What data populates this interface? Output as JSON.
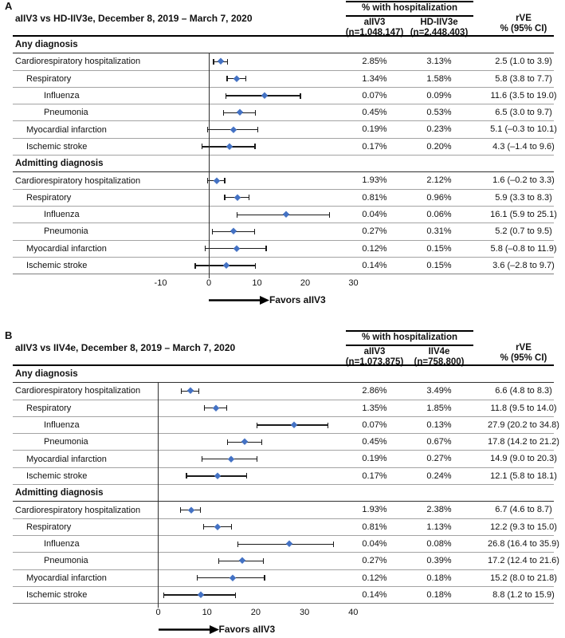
{
  "figure": {
    "hosp_header": "% with hospitalization",
    "rve_header_line1": "rVE",
    "rve_header_line2": "% (95% CI)",
    "favors_label": "Favors aIIV3"
  },
  "colors": {
    "diamond": "#4472c4",
    "error_bar": "#1a1a1a",
    "row_divider": "#a3a3a3",
    "section_divider": "#2f2f2f",
    "header_line": "#000000"
  },
  "chart_data": [
    {
      "type": "forest",
      "panel": "A",
      "title": "aIIV3 vs HD-IIV3e, December 8, 2019 – March 7, 2020",
      "col1": {
        "name": "aIIV3",
        "n": "(n=1,048,147)"
      },
      "col2": {
        "name": "HD-IIV3e",
        "n": "(n=2,448,403)"
      },
      "xaxis": {
        "ticks": [
          -10,
          0,
          10,
          20,
          30
        ],
        "zero_line": 0
      },
      "rows": [
        {
          "type": "section",
          "label": "Any diagnosis"
        },
        {
          "type": "data",
          "label": "Cardiorespiratory hospitalization",
          "indent": 0,
          "pct1": "2.85%",
          "pct2": "3.13%",
          "rve": "2.5 (1.0 to 3.9)",
          "est": 2.5,
          "lo": 1.0,
          "hi": 3.9
        },
        {
          "type": "data",
          "label": "Respiratory",
          "indent": 1,
          "pct1": "1.34%",
          "pct2": "1.58%",
          "rve": "5.8 (3.8 to 7.7)",
          "est": 5.8,
          "lo": 3.8,
          "hi": 7.7
        },
        {
          "type": "data",
          "label": "Influenza",
          "indent": 2,
          "pct1": "0.07%",
          "pct2": "0.09%",
          "rve": "11.6 (3.5 to 19.0)",
          "est": 11.6,
          "lo": 3.5,
          "hi": 19.0
        },
        {
          "type": "data",
          "label": "Pneumonia",
          "indent": 2,
          "pct1": "0.45%",
          "pct2": "0.53%",
          "rve": "6.5 (3.0 to 9.7)",
          "est": 6.5,
          "lo": 3.0,
          "hi": 9.7
        },
        {
          "type": "data",
          "label": "Myocardial infarction",
          "indent": 1,
          "pct1": "0.19%",
          "pct2": "0.23%",
          "rve": "5.1 (–0.3 to 10.1)",
          "est": 5.1,
          "lo": -0.3,
          "hi": 10.1
        },
        {
          "type": "data",
          "label": "Ischemic stroke",
          "indent": 1,
          "pct1": "0.17%",
          "pct2": "0.20%",
          "rve": "4.3 (–1.4 to 9.6)",
          "est": 4.3,
          "lo": -1.4,
          "hi": 9.6
        },
        {
          "type": "section",
          "label": "Admitting diagnosis"
        },
        {
          "type": "data",
          "label": "Cardiorespiratory hospitalization",
          "indent": 0,
          "pct1": "1.93%",
          "pct2": "2.12%",
          "rve": "1.6 (–0.2 to 3.3)",
          "est": 1.6,
          "lo": -0.2,
          "hi": 3.3
        },
        {
          "type": "data",
          "label": "Respiratory",
          "indent": 1,
          "pct1": "0.81%",
          "pct2": "0.96%",
          "rve": "5.9 (3.3 to 8.3)",
          "est": 5.9,
          "lo": 3.3,
          "hi": 8.3
        },
        {
          "type": "data",
          "label": "Influenza",
          "indent": 2,
          "pct1": "0.04%",
          "pct2": "0.06%",
          "rve": "16.1 (5.9 to 25.1)",
          "est": 16.1,
          "lo": 5.9,
          "hi": 25.1
        },
        {
          "type": "data",
          "label": "Pneumonia",
          "indent": 2,
          "pct1": "0.27%",
          "pct2": "0.31%",
          "rve": "5.2 (0.7 to 9.5)",
          "est": 5.2,
          "lo": 0.7,
          "hi": 9.5
        },
        {
          "type": "data",
          "label": "Myocardial infarction",
          "indent": 1,
          "pct1": "0.12%",
          "pct2": "0.15%",
          "rve": "5.8 (–0.8 to 11.9)",
          "est": 5.8,
          "lo": -0.8,
          "hi": 11.9
        },
        {
          "type": "data",
          "label": "Ischemic stroke",
          "indent": 1,
          "pct1": "0.14%",
          "pct2": "0.15%",
          "rve": "3.6 (–2.8 to 9.7)",
          "est": 3.6,
          "lo": -2.8,
          "hi": 9.7
        }
      ]
    },
    {
      "type": "forest",
      "panel": "B",
      "title": "aIIV3 vs IIV4e, December 8, 2019 – March 7, 2020",
      "col1": {
        "name": "aIIV3",
        "n": "(n=1,073,875)"
      },
      "col2": {
        "name": "IIV4e",
        "n": "(n=758,800)"
      },
      "xaxis": {
        "ticks": [
          0,
          10,
          20,
          30,
          40
        ],
        "zero_line": 0
      },
      "rows": [
        {
          "type": "section",
          "label": "Any diagnosis"
        },
        {
          "type": "data",
          "label": "Cardiorespiratory hospitalization",
          "indent": 0,
          "pct1": "2.86%",
          "pct2": "3.49%",
          "rve": "6.6 (4.8 to 8.3)",
          "est": 6.6,
          "lo": 4.8,
          "hi": 8.3
        },
        {
          "type": "data",
          "label": "Respiratory",
          "indent": 1,
          "pct1": "1.35%",
          "pct2": "1.85%",
          "rve": "11.8 (9.5 to 14.0)",
          "est": 11.8,
          "lo": 9.5,
          "hi": 14.0
        },
        {
          "type": "data",
          "label": "Influenza",
          "indent": 2,
          "pct1": "0.07%",
          "pct2": "0.13%",
          "rve": "27.9 (20.2 to 34.8)",
          "est": 27.9,
          "lo": 20.2,
          "hi": 34.8
        },
        {
          "type": "data",
          "label": "Pneumonia",
          "indent": 2,
          "pct1": "0.45%",
          "pct2": "0.67%",
          "rve": "17.8 (14.2 to 21.2)",
          "est": 17.8,
          "lo": 14.2,
          "hi": 21.2
        },
        {
          "type": "data",
          "label": "Myocardial infarction",
          "indent": 1,
          "pct1": "0.19%",
          "pct2": "0.27%",
          "rve": "14.9 (9.0 to 20.3)",
          "est": 14.9,
          "lo": 9.0,
          "hi": 20.3
        },
        {
          "type": "data",
          "label": "Ischemic stroke",
          "indent": 1,
          "pct1": "0.17%",
          "pct2": "0.24%",
          "rve": "12.1 (5.8 to 18.1)",
          "est": 12.1,
          "lo": 5.8,
          "hi": 18.1
        },
        {
          "type": "section",
          "label": "Admitting diagnosis"
        },
        {
          "type": "data",
          "label": "Cardiorespiratory hospitalization",
          "indent": 0,
          "pct1": "1.93%",
          "pct2": "2.38%",
          "rve": "6.7 (4.6 to 8.7)",
          "est": 6.7,
          "lo": 4.6,
          "hi": 8.7
        },
        {
          "type": "data",
          "label": "Respiratory",
          "indent": 1,
          "pct1": "0.81%",
          "pct2": "1.13%",
          "rve": "12.2 (9.3 to 15.0)",
          "est": 12.2,
          "lo": 9.3,
          "hi": 15.0
        },
        {
          "type": "data",
          "label": "Influenza",
          "indent": 2,
          "pct1": "0.04%",
          "pct2": "0.08%",
          "rve": "26.8 (16.4 to 35.9)",
          "est": 26.8,
          "lo": 16.4,
          "hi": 35.9
        },
        {
          "type": "data",
          "label": "Pneumonia",
          "indent": 2,
          "pct1": "0.27%",
          "pct2": "0.39%",
          "rve": "17.2 (12.4 to 21.6)",
          "est": 17.2,
          "lo": 12.4,
          "hi": 21.6
        },
        {
          "type": "data",
          "label": "Myocardial infarction",
          "indent": 1,
          "pct1": "0.12%",
          "pct2": "0.18%",
          "rve": "15.2 (8.0 to 21.8)",
          "est": 15.2,
          "lo": 8.0,
          "hi": 21.8
        },
        {
          "type": "data",
          "label": "Ischemic stroke",
          "indent": 1,
          "pct1": "0.14%",
          "pct2": "0.18%",
          "rve": "8.8 (1.2 to 15.9)",
          "est": 8.8,
          "lo": 1.2,
          "hi": 15.9
        }
      ]
    }
  ]
}
